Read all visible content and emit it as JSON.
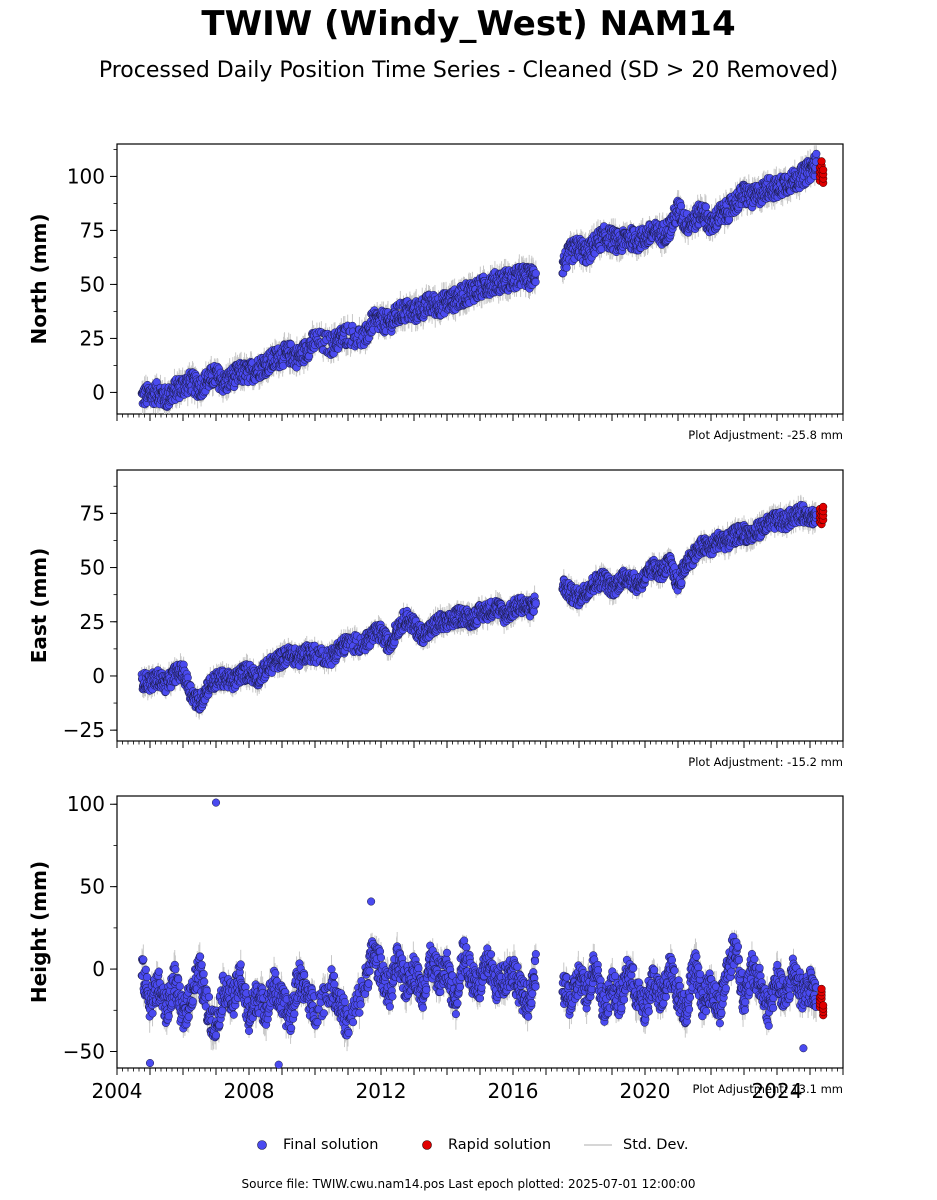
{
  "title": "TWIW (Windy_West) NAM14",
  "subtitle": "Processed Daily Position Time Series - Cleaned (SD > 20 Removed)",
  "footer": "Source file: TWIW.cwu.nam14.pos  Last epoch plotted: 2025-07-01 12:00:00",
  "colors": {
    "final": "#4a4af0",
    "rapid": "#e00000",
    "std": "#c8c8c8",
    "edge": "#1a1a40"
  },
  "legend": [
    {
      "label": "Final solution",
      "kind": "final"
    },
    {
      "label": "Rapid solution",
      "kind": "rapid"
    },
    {
      "label": "Std. Dev.",
      "kind": "std"
    }
  ],
  "chart_data": [
    {
      "type": "scatter",
      "ylabel": "North (mm)",
      "ylim": [
        -10,
        115
      ],
      "xlim": [
        2004.0,
        2026.0
      ],
      "yticks": [
        0,
        25,
        50,
        75,
        100
      ],
      "adjustment": "Plot Adjustment: -25.8 mm",
      "final_series": {
        "x": [
          2004.75,
          2005.0,
          2005.25,
          2005.5,
          2005.75,
          2006.0,
          2006.25,
          2006.5,
          2006.75,
          2007.0,
          2007.25,
          2007.5,
          2007.75,
          2008.0,
          2008.25,
          2008.5,
          2008.75,
          2009.0,
          2009.25,
          2009.5,
          2009.75,
          2010.0,
          2010.5,
          2010.75,
          2011.0,
          2011.5,
          2011.75,
          2012.0,
          2012.25,
          2012.5,
          2012.75,
          2013.0,
          2013.25,
          2013.5,
          2013.75,
          2014.0,
          2014.25,
          2014.5,
          2014.75,
          2015.0,
          2015.25,
          2015.5,
          2015.75,
          2016.0,
          2016.25,
          2016.5,
          2016.7,
          2017.5,
          2017.75,
          2018.0,
          2018.25,
          2018.5,
          2018.75,
          2019.0,
          2019.25,
          2019.5,
          2019.75,
          2020.0,
          2020.25,
          2020.5,
          2020.75,
          2021.0,
          2021.25,
          2021.5,
          2021.75,
          2022.0,
          2022.25,
          2022.5,
          2022.75,
          2023.0,
          2023.25,
          2023.5,
          2023.75,
          2024.0,
          2024.25,
          2024.5,
          2024.75,
          2025.0,
          2025.2
        ],
        "y": [
          -2,
          -1,
          0,
          -3,
          1,
          3,
          5,
          2,
          6,
          8,
          4,
          7,
          9,
          9,
          11,
          13,
          15,
          17,
          18,
          16,
          20,
          24,
          22,
          25,
          27,
          25,
          33,
          33,
          32,
          36,
          38,
          37,
          39,
          41,
          40,
          42,
          43,
          45,
          47,
          48,
          50,
          51,
          52,
          52,
          54,
          53,
          55,
          59,
          65,
          67,
          64,
          69,
          72,
          71,
          69,
          72,
          70,
          72,
          74,
          73,
          76,
          85,
          78,
          80,
          84,
          77,
          82,
          84,
          88,
          92,
          90,
          92,
          95,
          94,
          97,
          98,
          100,
          103,
          106
        ],
        "spread": 5
      },
      "rapid_series": {
        "x": [
          2025.3,
          2025.35,
          2025.4
        ],
        "y": [
          101,
          104,
          100
        ]
      }
    },
    {
      "type": "scatter",
      "ylabel": "East (mm)",
      "ylim": [
        -30,
        95
      ],
      "xlim": [
        2004.0,
        2026.0
      ],
      "yticks": [
        -25,
        0,
        25,
        50,
        75
      ],
      "adjustment": "Plot Adjustment: -15.2 mm",
      "final_series": {
        "x": [
          2004.75,
          2005.0,
          2005.25,
          2005.5,
          2005.75,
          2006.0,
          2006.25,
          2006.5,
          2006.75,
          2007.0,
          2007.25,
          2007.5,
          2007.75,
          2008.0,
          2008.25,
          2008.5,
          2008.75,
          2009.0,
          2009.25,
          2009.5,
          2009.75,
          2010.0,
          2010.5,
          2010.75,
          2011.0,
          2011.5,
          2011.75,
          2012.0,
          2012.25,
          2012.5,
          2012.75,
          2013.0,
          2013.25,
          2013.5,
          2013.75,
          2014.0,
          2014.25,
          2014.5,
          2014.75,
          2015.0,
          2015.25,
          2015.5,
          2015.75,
          2016.0,
          2016.25,
          2016.5,
          2016.7,
          2017.5,
          2017.75,
          2018.0,
          2018.25,
          2018.5,
          2018.75,
          2019.0,
          2019.25,
          2019.5,
          2019.75,
          2020.0,
          2020.25,
          2020.5,
          2020.75,
          2021.0,
          2021.25,
          2021.5,
          2021.75,
          2022.0,
          2022.25,
          2022.5,
          2022.75,
          2023.0,
          2023.25,
          2023.5,
          2023.75,
          2024.0,
          2024.25,
          2024.5,
          2024.75,
          2025.0,
          2025.2
        ],
        "y": [
          -2,
          -3,
          -1,
          -4,
          1,
          2,
          -8,
          -13,
          -5,
          -2,
          -1,
          -3,
          1,
          2,
          -1,
          3,
          6,
          8,
          10,
          8,
          11,
          10,
          9,
          13,
          15,
          15,
          19,
          20,
          14,
          22,
          27,
          23,
          19,
          21,
          25,
          24,
          27,
          28,
          26,
          29,
          30,
          32,
          28,
          31,
          33,
          31,
          34,
          42,
          38,
          36,
          40,
          43,
          45,
          40,
          44,
          46,
          42,
          45,
          50,
          48,
          52,
          42,
          52,
          56,
          60,
          59,
          63,
          62,
          65,
          66,
          65,
          68,
          70,
          72,
          71,
          74,
          75,
          74,
          73
        ],
        "spread": 4
      },
      "rapid_series": {
        "x": [
          2025.3,
          2025.35,
          2025.4
        ],
        "y": [
          74,
          73,
          75
        ]
      }
    },
    {
      "type": "scatter",
      "ylabel": "Height (mm)",
      "ylim": [
        -60,
        105
      ],
      "xlim": [
        2004.0,
        2026.0
      ],
      "yticks": [
        -50,
        0,
        50,
        100
      ],
      "xticks": [
        2004,
        2008,
        2012,
        2016,
        2020,
        2024
      ],
      "adjustment": "Plot Adjustment: 13.1 mm",
      "final_series": {
        "x": [
          2004.75,
          2005.0,
          2005.25,
          2005.5,
          2005.75,
          2006.0,
          2006.25,
          2006.5,
          2006.75,
          2007.0,
          2007.25,
          2007.5,
          2007.75,
          2008.0,
          2008.25,
          2008.5,
          2008.75,
          2009.0,
          2009.25,
          2009.5,
          2009.75,
          2010.0,
          2010.5,
          2010.75,
          2011.0,
          2011.5,
          2011.75,
          2012.0,
          2012.25,
          2012.5,
          2012.75,
          2013.0,
          2013.25,
          2013.5,
          2013.75,
          2014.0,
          2014.25,
          2014.5,
          2014.75,
          2015.0,
          2015.25,
          2015.5,
          2015.75,
          2016.0,
          2016.25,
          2016.5,
          2016.7,
          2017.5,
          2017.75,
          2018.0,
          2018.25,
          2018.5,
          2018.75,
          2019.0,
          2019.25,
          2019.5,
          2019.75,
          2020.0,
          2020.25,
          2020.5,
          2020.75,
          2021.0,
          2021.25,
          2021.5,
          2021.75,
          2022.0,
          2022.25,
          2022.5,
          2022.75,
          2023.0,
          2023.25,
          2023.5,
          2023.75,
          2024.0,
          2024.25,
          2024.5,
          2024.75,
          2025.0,
          2025.2
        ],
        "y": [
          0,
          -20,
          -10,
          -25,
          -5,
          -30,
          -15,
          0,
          -25,
          -35,
          -10,
          -20,
          -5,
          -30,
          -15,
          -25,
          -10,
          -20,
          -30,
          -5,
          -15,
          -25,
          -10,
          -20,
          -35,
          -10,
          10,
          0,
          -15,
          5,
          -10,
          0,
          -15,
          5,
          -5,
          0,
          -20,
          10,
          -5,
          -10,
          5,
          -10,
          -5,
          0,
          -15,
          -20,
          0,
          -10,
          -20,
          -5,
          -15,
          5,
          -25,
          -10,
          -20,
          0,
          -15,
          -25,
          -5,
          -20,
          0,
          -15,
          -25,
          5,
          -20,
          -10,
          -25,
          0,
          15,
          -20,
          0,
          -10,
          -25,
          -5,
          -20,
          0,
          -15,
          -10,
          -20
        ],
        "spread": 10
      },
      "outliers": {
        "x": [
          2007.0,
          2011.7,
          2005.0,
          2008.9,
          2024.8
        ],
        "y": [
          101,
          41,
          -57,
          -58,
          -48
        ]
      },
      "rapid_series": {
        "x": [
          2025.3,
          2025.35,
          2025.4
        ],
        "y": [
          -20,
          -15,
          -25
        ]
      }
    }
  ]
}
